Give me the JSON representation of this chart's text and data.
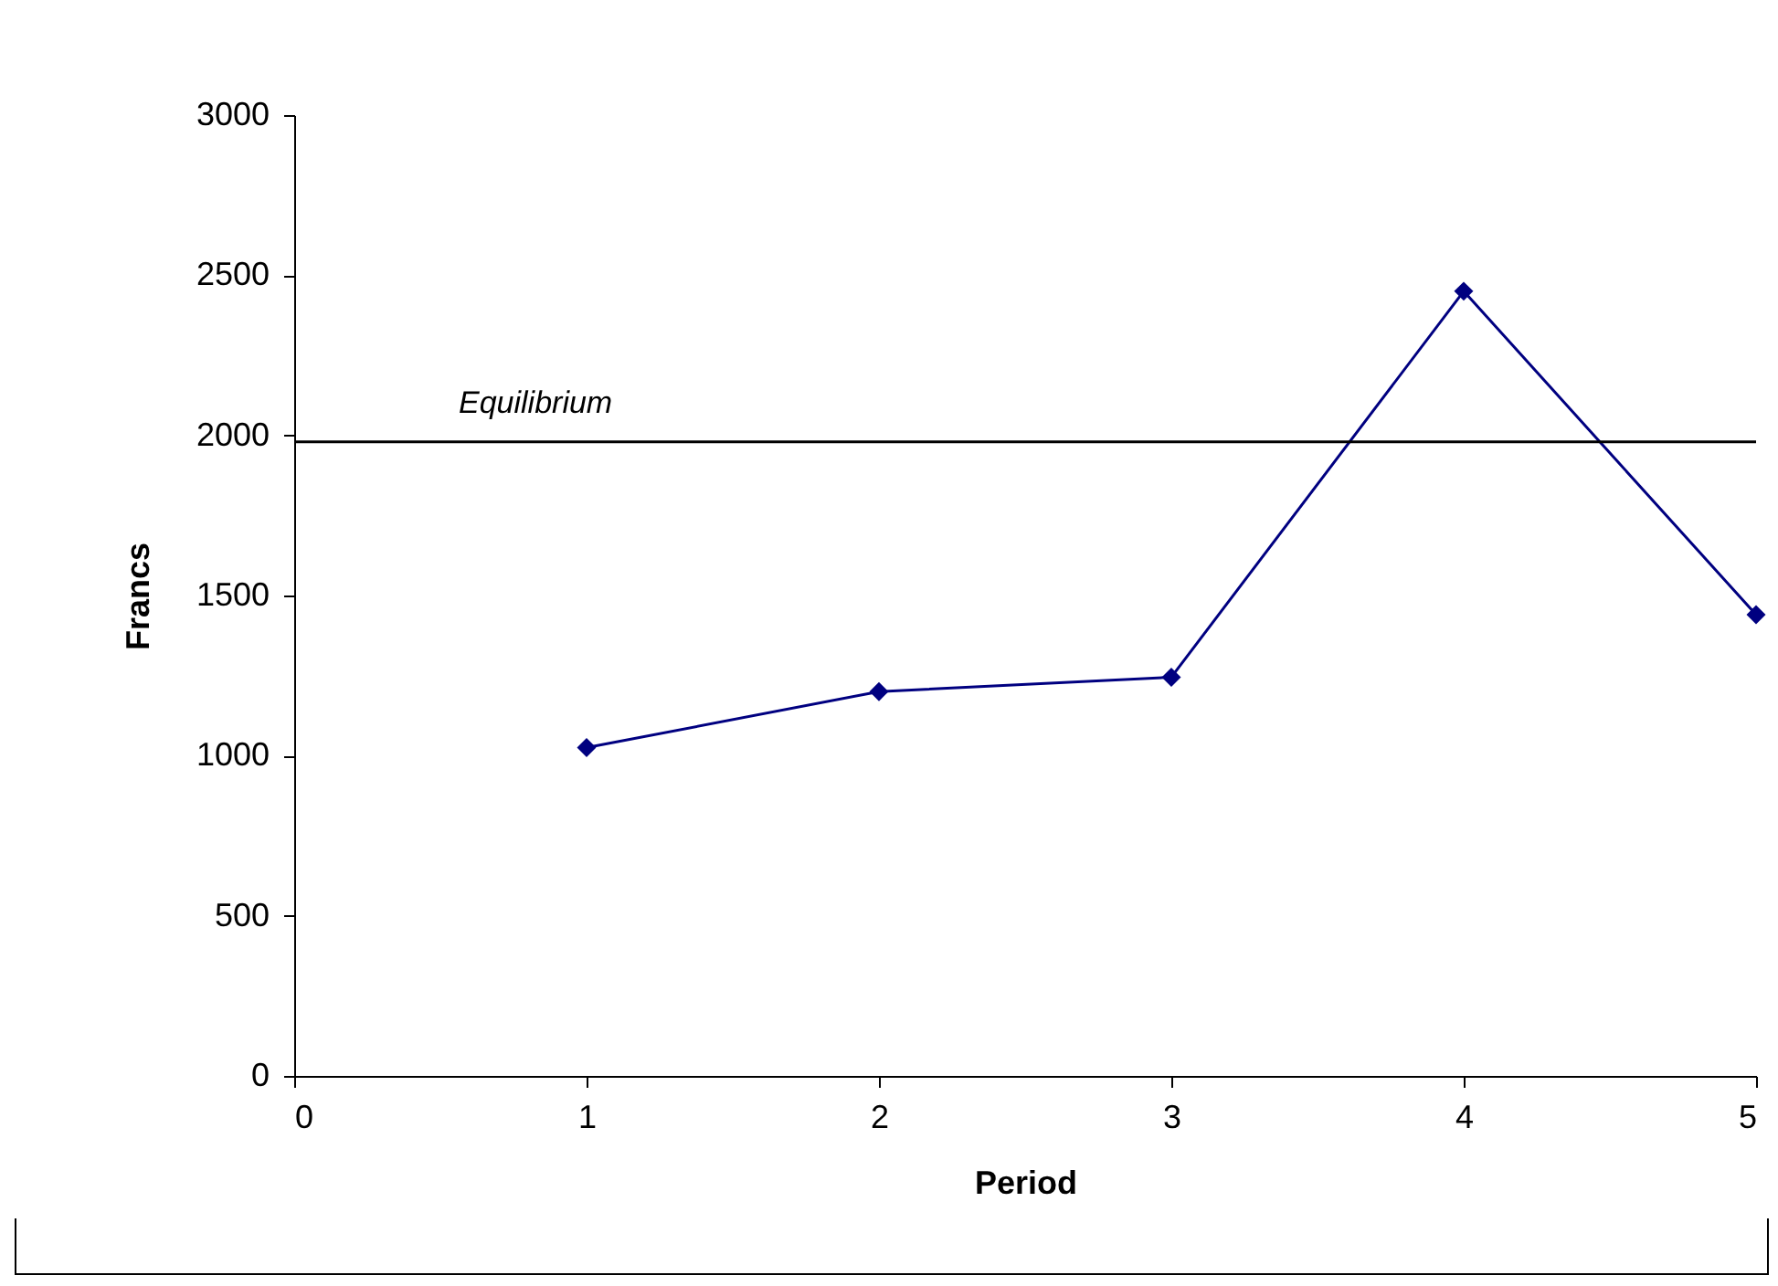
{
  "chart_data": {
    "type": "line",
    "xlabel": "Period",
    "ylabel": "Francs",
    "x": [
      1,
      2,
      3,
      4,
      5
    ],
    "series": [
      {
        "color": "#000080",
        "values": [
          1025,
          1200,
          1245,
          2450,
          1440
        ]
      }
    ],
    "xlim": [
      0,
      5
    ],
    "xticks": [
      0,
      1,
      2,
      3,
      4,
      5
    ],
    "ylim": [
      0,
      3000
    ],
    "yticks": [
      0,
      500,
      1000,
      1500,
      2000,
      2500,
      3000
    ],
    "ref_lines": [
      {
        "axis": "y",
        "value": 1980,
        "label": "Equilibrium",
        "color": "#000000"
      }
    ],
    "marker": "diamond",
    "grid": false
  }
}
